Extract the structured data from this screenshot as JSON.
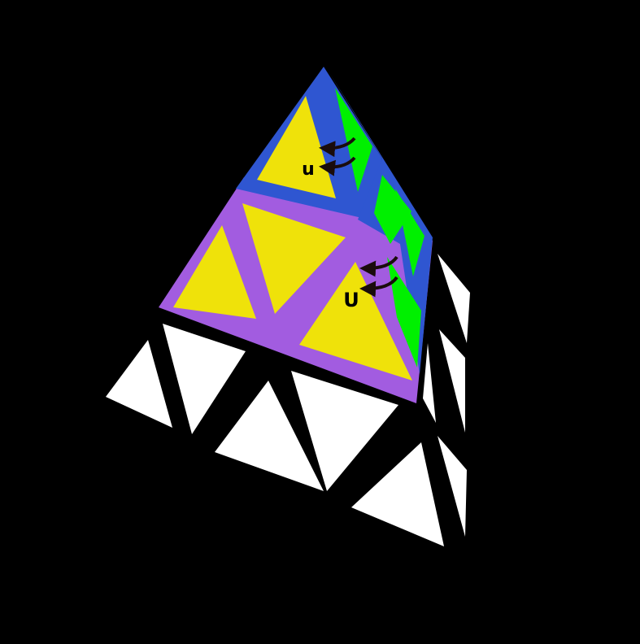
{
  "diagram": {
    "puzzle": "pyraminx",
    "colors": {
      "background": "#000000",
      "front_face_base": "#a25ce0",
      "tip_base": "#2f56d1",
      "front_stickers": "#efe20a",
      "right_stickers_upper": "#00f000",
      "right_stickers_lower": "#ffffff",
      "bottom_stickers": "#ffffff",
      "arrow": "#1a0c0c"
    },
    "moves": [
      {
        "label": "u",
        "layer": "tip",
        "direction": "counter-clockwise"
      },
      {
        "label": "U",
        "layer": "top",
        "direction": "counter-clockwise"
      }
    ]
  }
}
